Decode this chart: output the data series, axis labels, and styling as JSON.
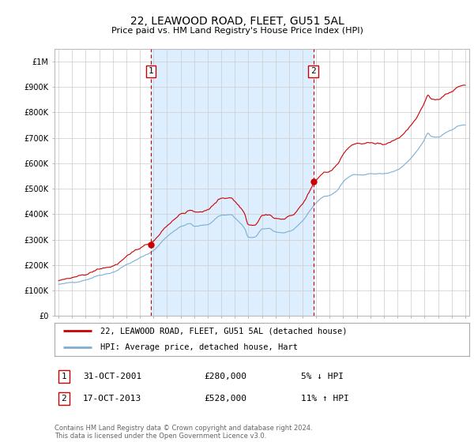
{
  "title": "22, LEAWOOD ROAD, FLEET, GU51 5AL",
  "subtitle": "Price paid vs. HM Land Registry's House Price Index (HPI)",
  "ylim": [
    0,
    1050000
  ],
  "yticks": [
    0,
    100000,
    200000,
    300000,
    400000,
    500000,
    600000,
    700000,
    800000,
    900000,
    1000000
  ],
  "ytick_labels": [
    "£0",
    "£100K",
    "£200K",
    "£300K",
    "£400K",
    "£500K",
    "£600K",
    "£700K",
    "£800K",
    "£900K",
    "£1M"
  ],
  "xlim_start": 1994.7,
  "xlim_end": 2025.3,
  "hpi_color": "#7bafd4",
  "price_color": "#cc0000",
  "shade_color": "#ddeeff",
  "vline_color": "#cc0000",
  "grid_color": "#cccccc",
  "background_color": "#ffffff",
  "sale1_x": 2001.83,
  "sale1_y": 280000,
  "sale1_label": "1",
  "sale1_date": "31-OCT-2001",
  "sale1_price": "£280,000",
  "sale1_hpi": "5% ↓ HPI",
  "sale2_x": 2013.79,
  "sale2_y": 528000,
  "sale2_label": "2",
  "sale2_date": "17-OCT-2013",
  "sale2_price": "£528,000",
  "sale2_hpi": "11% ↑ HPI",
  "legend_line1": "22, LEAWOOD ROAD, FLEET, GU51 5AL (detached house)",
  "legend_line2": "HPI: Average price, detached house, Hart",
  "footnote": "Contains HM Land Registry data © Crown copyright and database right 2024.\nThis data is licensed under the Open Government Licence v3.0."
}
